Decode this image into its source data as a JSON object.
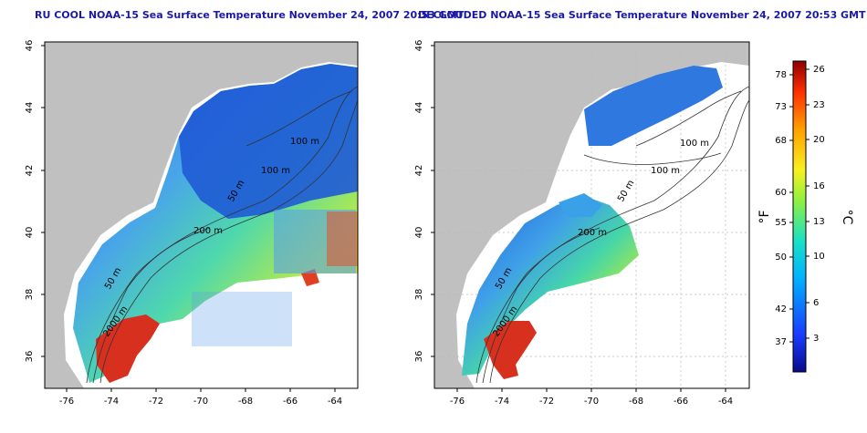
{
  "panels": [
    {
      "title": "RU COOL NOAA-15 Sea Surface Temperature November 24, 2007 20:53 GMT",
      "x_ticks": [
        "-76",
        "-74",
        "-72",
        "-70",
        "-68",
        "-66",
        "-64"
      ],
      "y_ticks": [
        "36",
        "38",
        "40",
        "42",
        "44",
        "46"
      ],
      "contours": [
        "100 m",
        "100 m",
        "50 m",
        "200 m",
        "50 m",
        "2000 m"
      ]
    },
    {
      "title": "DECLOUDED NOAA-15 Sea Surface Temperature November 24, 2007 20:53 GMT",
      "x_ticks": [
        "-76",
        "-74",
        "-72",
        "-70",
        "-68",
        "-66",
        "-64"
      ],
      "y_ticks": [
        "36",
        "38",
        "40",
        "42",
        "44",
        "46"
      ],
      "contours": [
        "100 m",
        "100 m",
        "50 m",
        "200 m",
        "50 m",
        "2000 m"
      ]
    }
  ],
  "colorbar": {
    "f_label": "°F",
    "c_label": "°C",
    "f_ticks": [
      "78",
      "73",
      "68",
      "60",
      "55",
      "50",
      "42",
      "37"
    ],
    "c_ticks": [
      "26",
      "23",
      "20",
      "16",
      "13",
      "10",
      "6",
      "3"
    ]
  }
}
